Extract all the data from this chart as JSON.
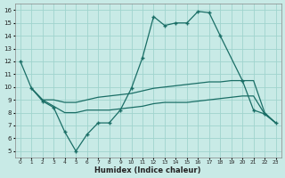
{
  "xlabel": "Humidex (Indice chaleur)",
  "bg_color": "#c8eae6",
  "grid_color": "#a0d4ce",
  "line_color": "#1a6e66",
  "xlim": [
    -0.5,
    23.5
  ],
  "ylim": [
    4.5,
    16.5
  ],
  "xticks": [
    0,
    1,
    2,
    3,
    4,
    5,
    6,
    7,
    8,
    9,
    10,
    11,
    12,
    13,
    14,
    15,
    16,
    17,
    18,
    19,
    20,
    21,
    22,
    23
  ],
  "yticks": [
    5,
    6,
    7,
    8,
    9,
    10,
    11,
    12,
    13,
    14,
    15,
    16
  ],
  "line1_x": [
    0,
    1,
    2,
    3,
    4,
    5,
    6,
    7,
    8,
    9,
    10,
    11,
    12,
    13,
    14,
    15,
    16,
    17,
    18,
    20,
    21,
    22,
    23
  ],
  "line1_y": [
    12.0,
    9.9,
    8.9,
    8.4,
    6.5,
    5.0,
    6.3,
    7.2,
    7.2,
    8.2,
    9.9,
    12.3,
    15.5,
    14.8,
    15.0,
    15.0,
    15.9,
    15.8,
    14.0,
    10.5,
    8.2,
    7.9,
    7.2
  ],
  "line2_x": [
    1,
    2,
    3,
    4,
    5,
    6,
    7,
    8,
    9,
    10,
    11,
    12,
    13,
    14,
    15,
    16,
    17,
    18,
    19,
    20,
    21,
    22,
    23
  ],
  "line2_y": [
    9.9,
    9.0,
    9.0,
    8.8,
    8.8,
    9.0,
    9.2,
    9.3,
    9.4,
    9.5,
    9.7,
    9.9,
    10.0,
    10.1,
    10.2,
    10.3,
    10.4,
    10.4,
    10.5,
    10.5,
    10.5,
    8.0,
    7.2
  ],
  "line3_x": [
    1,
    2,
    3,
    4,
    5,
    6,
    7,
    8,
    9,
    10,
    11,
    12,
    13,
    14,
    15,
    16,
    17,
    18,
    19,
    20,
    21,
    22,
    23
  ],
  "line3_y": [
    9.9,
    9.0,
    8.5,
    8.0,
    8.0,
    8.2,
    8.2,
    8.2,
    8.3,
    8.4,
    8.5,
    8.7,
    8.8,
    8.8,
    8.8,
    8.9,
    9.0,
    9.1,
    9.2,
    9.3,
    9.3,
    7.9,
    7.2
  ]
}
